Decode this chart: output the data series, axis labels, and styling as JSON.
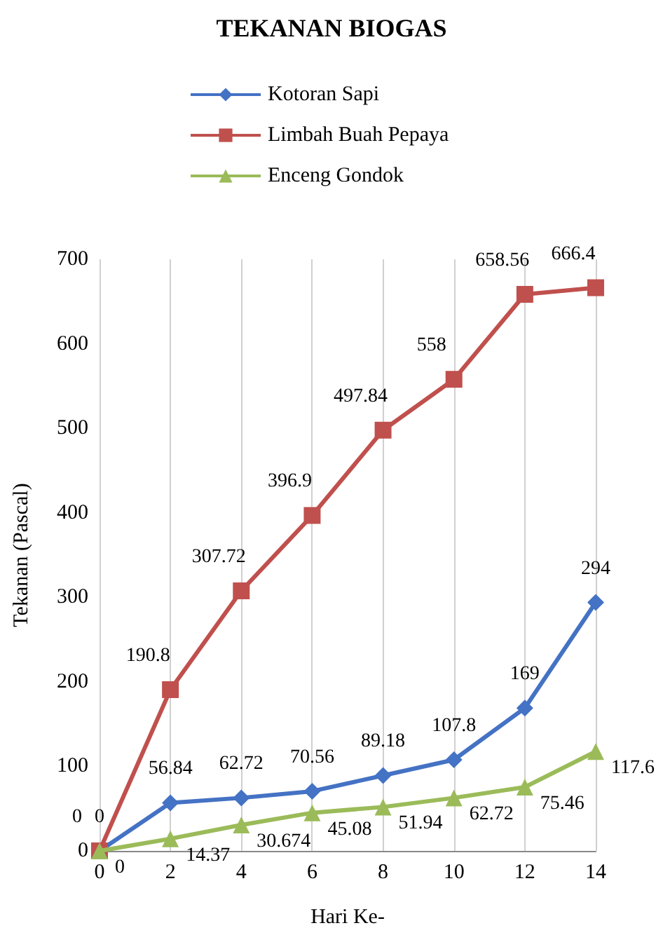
{
  "chart_data": {
    "type": "line",
    "title": "TEKANAN BIOGAS",
    "xlabel": "Hari Ke-",
    "ylabel": "Tekanan (Pascal)",
    "categories": [
      "0",
      "2",
      "4",
      "6",
      "8",
      "10",
      "12",
      "14"
    ],
    "series": [
      {
        "name": "Kotoran Sapi",
        "color": "#4472c4",
        "marker": "diamond",
        "values": [
          0,
          56.84,
          62.72,
          70.56,
          89.18,
          107.8,
          169,
          294
        ]
      },
      {
        "name": "Limbah Buah Pepaya",
        "color": "#c0504d",
        "marker": "square",
        "values": [
          0,
          190.8,
          307.72,
          396.9,
          497.84,
          558,
          658.56,
          666.4
        ]
      },
      {
        "name": "Enceng Gondok",
        "color": "#9bbb59",
        "marker": "triangle",
        "values": [
          0,
          14.37,
          30.674,
          45.08,
          51.94,
          62.72,
          75.46,
          117.6
        ]
      }
    ],
    "ylim": [
      0,
      700
    ],
    "yticks": [
      0,
      100,
      200,
      300,
      400,
      500,
      600,
      700
    ],
    "grid": "x",
    "legend": "top",
    "data_labels": true
  }
}
